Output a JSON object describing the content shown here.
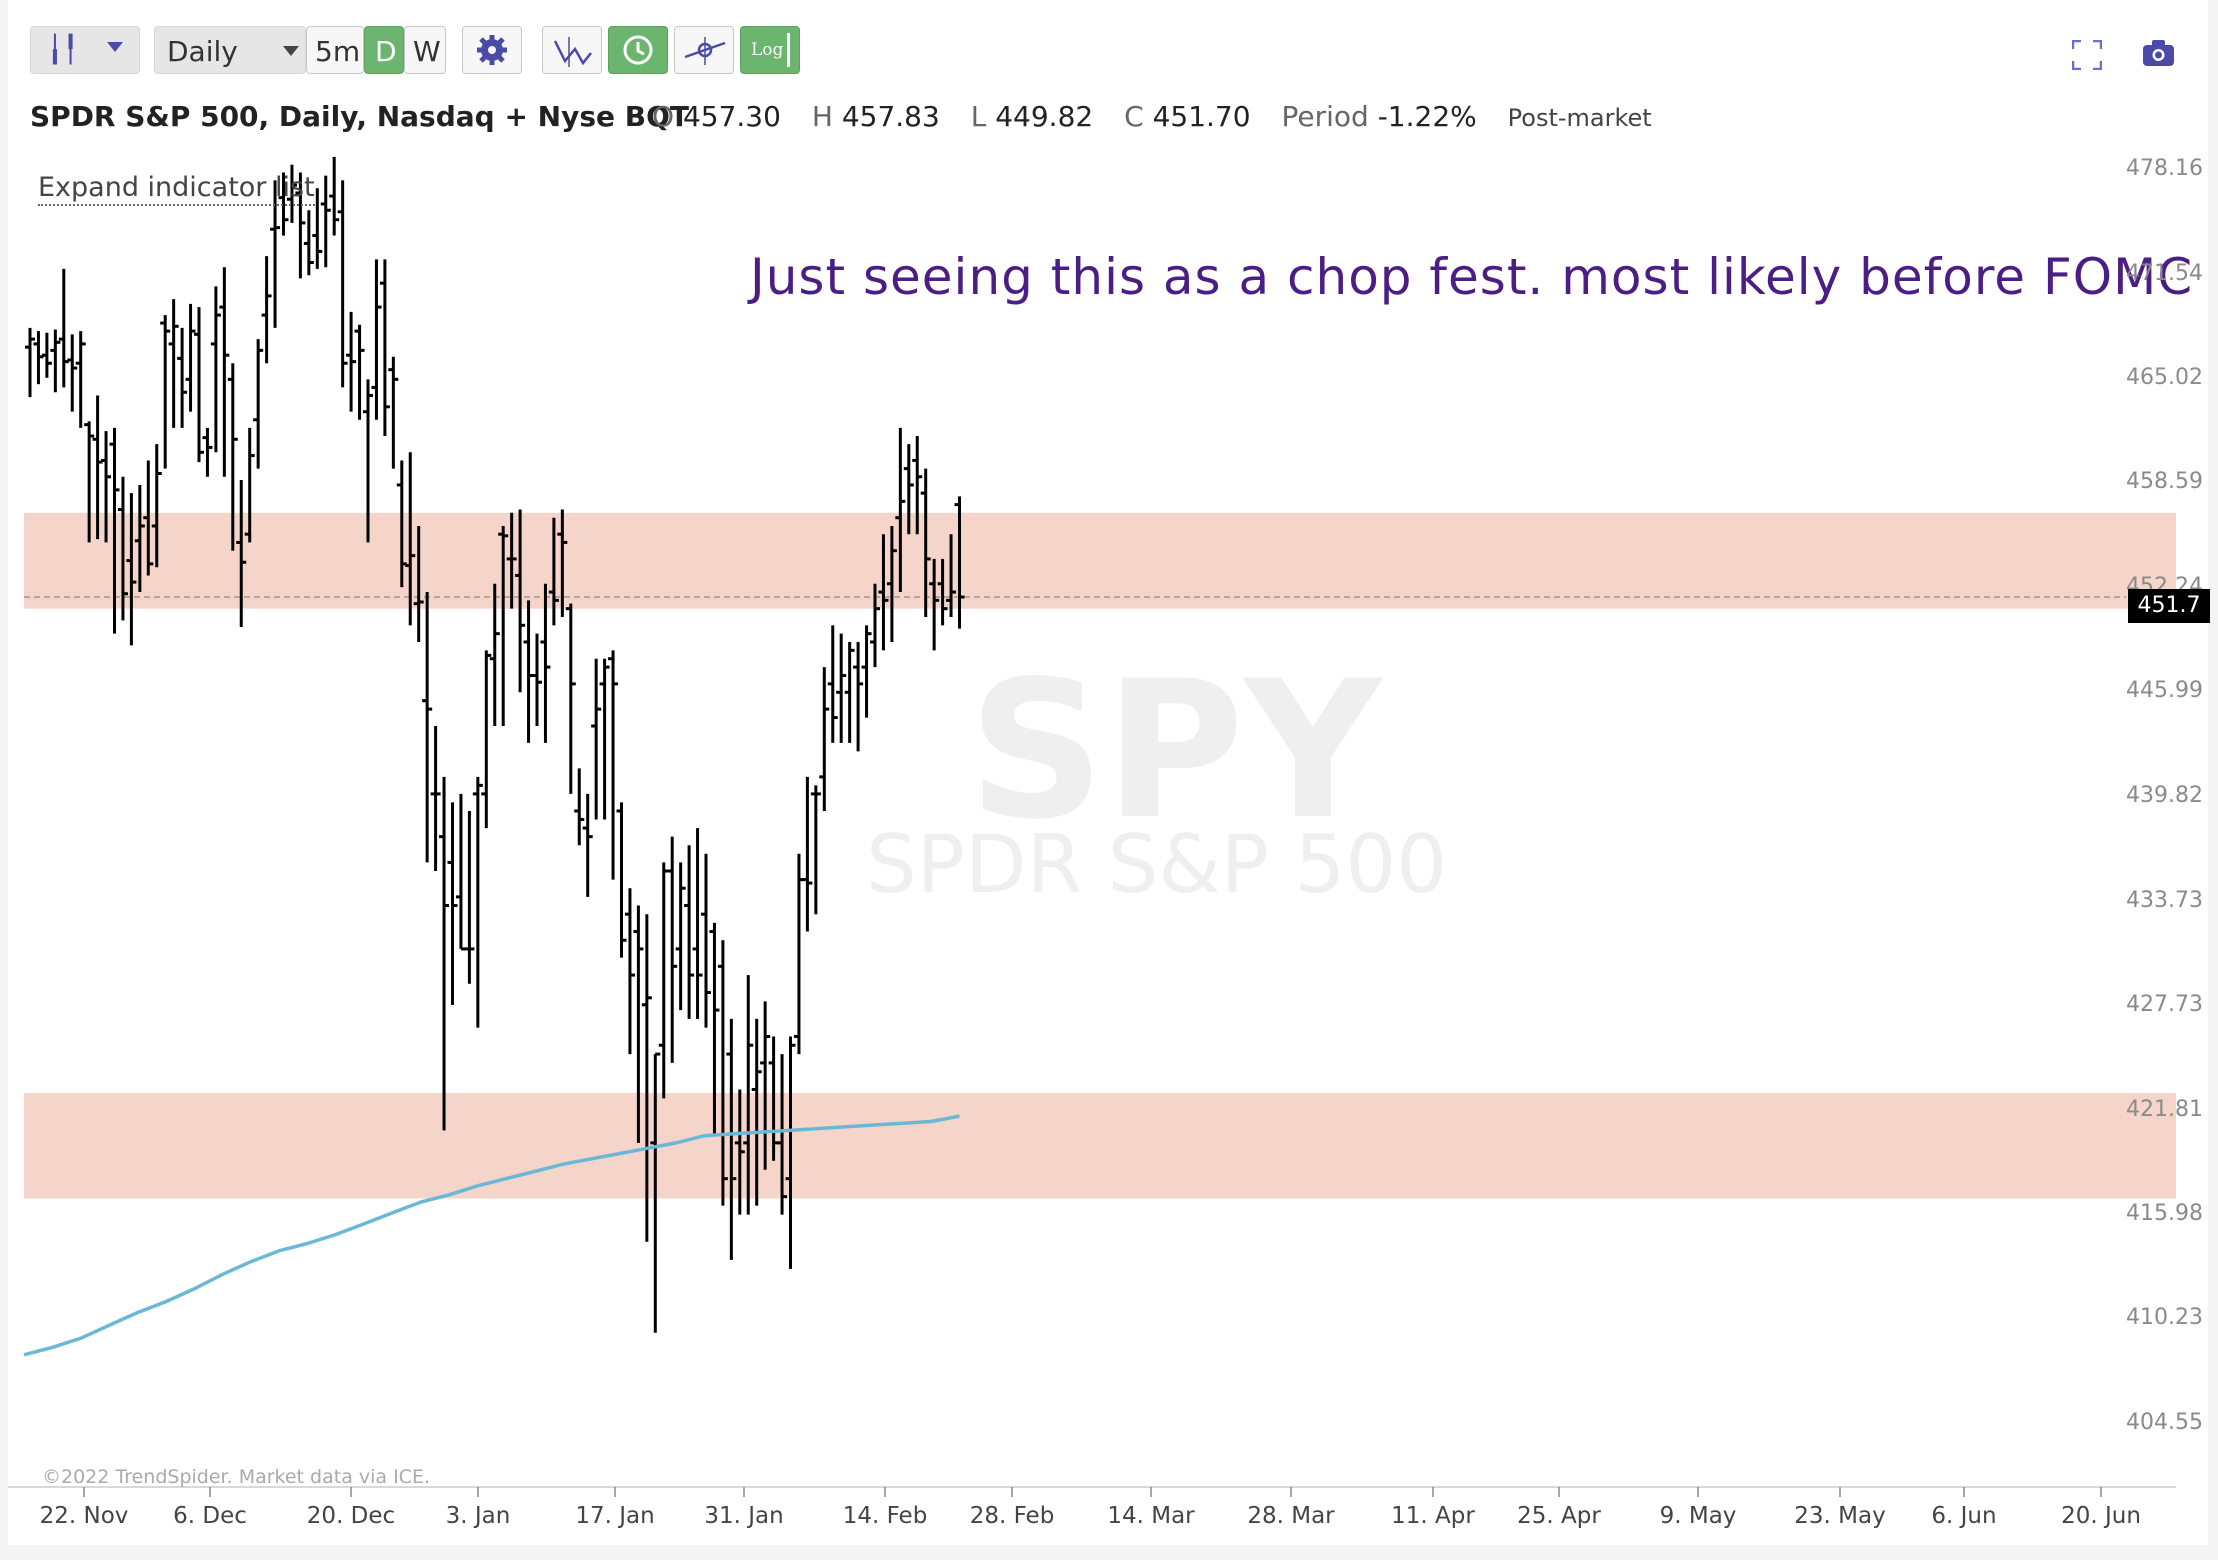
{
  "toolbar": {
    "interval_label": "Daily",
    "btn_5m": "5m",
    "btn_d": "D",
    "btn_w": "W",
    "btn_log": "Log"
  },
  "header": {
    "symbol_name": "SPDR S&P 500, Daily, Nasdaq + Nyse BQT",
    "o_label": "O",
    "o_value": "457.30",
    "h_label": "H",
    "h_value": "457.83",
    "l_label": "L",
    "l_value": "449.82",
    "c_label": "C",
    "c_value": "451.70",
    "period_label": "Period",
    "period_value": "-1.22%",
    "session": "Post-market"
  },
  "expand_indicator_label": "Expand indicator list",
  "annotation": "Just seeing this as a chop fest. most likely before FOMC",
  "watermark": {
    "symbol": "SPY",
    "name": "SPDR S&P 500"
  },
  "copyright": "©2022 TrendSpider. Market data via ICE.",
  "last_price_label": "451.7",
  "colors": {
    "zone": "#f5d5ca",
    "sma": "#6bb8d6",
    "bars": "#000000",
    "annotation": "#4b1e86"
  },
  "chart_data": {
    "type": "bar",
    "style": "ohlc",
    "y_ticks": [
      "478.16",
      "471.54",
      "465.02",
      "458.59",
      "452.24",
      "445.99",
      "439.82",
      "433.73",
      "427.73",
      "421.81",
      "415.98",
      "410.23",
      "404.55"
    ],
    "x_ticks": [
      "22. Nov",
      "6. Dec",
      "20. Dec",
      "3. Jan",
      "17. Jan",
      "31. Jan",
      "14. Feb",
      "28. Feb",
      "14. Mar",
      "28. Mar",
      "11. Apr",
      "25. Apr",
      "9. May",
      "23. May",
      "6. Jun",
      "20. Jun"
    ],
    "ylim": [
      401.4,
      482.1
    ],
    "last_price": 451.7,
    "zones": [],
    "ohlc": [
      {
        "o": 467.0,
        "h": 468.2,
        "l": 463.9,
        "c": 467.5
      },
      {
        "o": 467.2,
        "h": 468.0,
        "l": 464.7,
        "c": 466.4
      },
      {
        "o": 466.5,
        "h": 467.9,
        "l": 465.1,
        "c": 466.0
      },
      {
        "o": 466.8,
        "h": 468.1,
        "l": 464.2,
        "c": 467.3
      },
      {
        "o": 467.5,
        "h": 471.9,
        "l": 464.5,
        "c": 466.1
      },
      {
        "o": 466.2,
        "h": 467.8,
        "l": 463.0,
        "c": 465.7
      },
      {
        "o": 466.0,
        "h": 468.0,
        "l": 462.0,
        "c": 467.2
      },
      {
        "o": 462.2,
        "h": 462.4,
        "l": 455.0,
        "c": 461.5
      },
      {
        "o": 461.3,
        "h": 464.0,
        "l": 455.2,
        "c": 459.9
      },
      {
        "o": 460.0,
        "h": 461.8,
        "l": 455.0,
        "c": 459.0
      },
      {
        "o": 461.0,
        "h": 462.0,
        "l": 449.5,
        "c": 458.2
      },
      {
        "o": 457.0,
        "h": 459.0,
        "l": 450.3,
        "c": 451.9
      },
      {
        "o": 453.9,
        "h": 458.0,
        "l": 448.8,
        "c": 452.6
      },
      {
        "o": 455.1,
        "h": 458.5,
        "l": 452.0,
        "c": 456.0
      },
      {
        "o": 456.5,
        "h": 460.0,
        "l": 453.0,
        "c": 453.7
      },
      {
        "o": 456.0,
        "h": 461.0,
        "l": 453.5,
        "c": 459.2
      },
      {
        "o": 468.5,
        "h": 469.0,
        "l": 459.5,
        "c": 468.0
      },
      {
        "o": 467.2,
        "h": 470.0,
        "l": 462.0,
        "c": 468.3
      },
      {
        "o": 466.3,
        "h": 468.2,
        "l": 462.0,
        "c": 464.2
      },
      {
        "o": 465.0,
        "h": 469.7,
        "l": 463.0,
        "c": 468.0
      },
      {
        "o": 467.8,
        "h": 469.5,
        "l": 459.9,
        "c": 460.5
      },
      {
        "o": 461.4,
        "h": 462.0,
        "l": 459.0,
        "c": 460.8
      },
      {
        "o": 467.2,
        "h": 470.8,
        "l": 460.5,
        "c": 469.0
      },
      {
        "o": 469.5,
        "h": 472.0,
        "l": 459.0,
        "c": 466.5
      },
      {
        "o": 465.0,
        "h": 466.0,
        "l": 454.5,
        "c": 461.3
      },
      {
        "o": 455.0,
        "h": 458.8,
        "l": 449.9,
        "c": 453.8
      },
      {
        "o": 455.5,
        "h": 462.0,
        "l": 455.0,
        "c": 460.3
      },
      {
        "o": 462.5,
        "h": 467.5,
        "l": 459.5,
        "c": 466.8
      },
      {
        "o": 469.0,
        "h": 472.7,
        "l": 466.0,
        "c": 470.2
      },
      {
        "o": 474.4,
        "h": 477.5,
        "l": 468.2,
        "c": 474.5
      },
      {
        "o": 476.4,
        "h": 478.0,
        "l": 474.0,
        "c": 475.0
      },
      {
        "o": 476.3,
        "h": 478.5,
        "l": 474.8,
        "c": 477.2
      },
      {
        "o": 476.7,
        "h": 478.0,
        "l": 471.3,
        "c": 474.8
      },
      {
        "o": 473.5,
        "h": 475.6,
        "l": 471.5,
        "c": 472.3
      },
      {
        "o": 474.0,
        "h": 477.0,
        "l": 471.9,
        "c": 473.0
      },
      {
        "o": 476.0,
        "h": 477.8,
        "l": 472.0,
        "c": 475.6
      },
      {
        "o": 476.5,
        "h": 479.0,
        "l": 474.0,
        "c": 475.0
      },
      {
        "o": 475.5,
        "h": 477.5,
        "l": 464.5,
        "c": 466.0
      },
      {
        "o": 466.5,
        "h": 469.2,
        "l": 463.0,
        "c": 466.1
      },
      {
        "o": 468.0,
        "h": 468.4,
        "l": 462.5,
        "c": 466.8
      },
      {
        "o": 463.0,
        "h": 465.0,
        "l": 455.0,
        "c": 464.0
      },
      {
        "o": 464.5,
        "h": 472.5,
        "l": 462.5,
        "c": 469.5
      },
      {
        "o": 471.0,
        "h": 472.5,
        "l": 461.5,
        "c": 463.3
      },
      {
        "o": 465.6,
        "h": 466.4,
        "l": 459.5,
        "c": 465.0
      },
      {
        "o": 458.5,
        "h": 460.0,
        "l": 452.3,
        "c": 453.7
      },
      {
        "o": 453.6,
        "h": 460.5,
        "l": 450.0,
        "c": 454.2
      },
      {
        "o": 451.3,
        "h": 456.0,
        "l": 449.0,
        "c": 451.4
      },
      {
        "o": 445.5,
        "h": 452.0,
        "l": 436.0,
        "c": 445.0
      },
      {
        "o": 440.0,
        "h": 444.0,
        "l": 435.5,
        "c": 440.0
      },
      {
        "o": 437.5,
        "h": 441.0,
        "l": 420.7,
        "c": 433.5
      },
      {
        "o": 436.0,
        "h": 439.5,
        "l": 427.8,
        "c": 433.5
      },
      {
        "o": 434.0,
        "h": 440.0,
        "l": 431.0,
        "c": 431.0
      },
      {
        "o": 431.0,
        "h": 439.0,
        "l": 429.0,
        "c": 431.0
      },
      {
        "o": 440.0,
        "h": 441.0,
        "l": 426.5,
        "c": 440.5
      },
      {
        "o": 440.0,
        "h": 448.5,
        "l": 438.0,
        "c": 448.2
      },
      {
        "o": 448.0,
        "h": 452.5,
        "l": 444.0,
        "c": 449.5
      },
      {
        "o": 455.5,
        "h": 456.0,
        "l": 444.0,
        "c": 455.4
      },
      {
        "o": 454.0,
        "h": 456.8,
        "l": 451.0,
        "c": 454.0
      },
      {
        "o": 453.0,
        "h": 457.0,
        "l": 446.0,
        "c": 450.0
      },
      {
        "o": 449.0,
        "h": 451.5,
        "l": 443.0,
        "c": 447.0
      },
      {
        "o": 447.0,
        "h": 449.5,
        "l": 444.0,
        "c": 446.6
      },
      {
        "o": 449.0,
        "h": 452.5,
        "l": 443.0,
        "c": 447.5
      },
      {
        "o": 452.0,
        "h": 456.5,
        "l": 450.0,
        "c": 451.5
      },
      {
        "o": 455.5,
        "h": 457.0,
        "l": 450.5,
        "c": 455.0
      },
      {
        "o": 451.0,
        "h": 451.3,
        "l": 440.0,
        "c": 446.5
      },
      {
        "o": 439.0,
        "h": 441.5,
        "l": 437.0,
        "c": 438.5
      },
      {
        "o": 438.0,
        "h": 440.0,
        "l": 434.0,
        "c": 437.5
      },
      {
        "o": 444.0,
        "h": 448.0,
        "l": 438.5,
        "c": 445.0
      },
      {
        "o": 446.5,
        "h": 448.0,
        "l": 438.5,
        "c": 447.5
      },
      {
        "o": 448.0,
        "h": 448.5,
        "l": 435.0,
        "c": 446.5
      },
      {
        "o": 439.0,
        "h": 439.5,
        "l": 430.5,
        "c": 431.5
      },
      {
        "o": 433.0,
        "h": 434.5,
        "l": 425.0,
        "c": 429.5
      },
      {
        "o": 432.0,
        "h": 433.5,
        "l": 420.0,
        "c": 431.0
      },
      {
        "o": 427.8,
        "h": 433.0,
        "l": 414.5,
        "c": 428.2
      },
      {
        "o": 420.0,
        "h": 425.0,
        "l": 409.5,
        "c": 425.0
      },
      {
        "o": 425.5,
        "h": 436.0,
        "l": 422.5,
        "c": 435.5
      },
      {
        "o": 435.5,
        "h": 437.5,
        "l": 424.5,
        "c": 430.0
      },
      {
        "o": 431.0,
        "h": 436.0,
        "l": 427.5,
        "c": 434.5
      },
      {
        "o": 433.5,
        "h": 437.0,
        "l": 427.0,
        "c": 429.5
      },
      {
        "o": 431.0,
        "h": 438.0,
        "l": 427.0,
        "c": 429.5
      },
      {
        "o": 433.0,
        "h": 436.5,
        "l": 426.5,
        "c": 428.5
      },
      {
        "o": 432.0,
        "h": 432.5,
        "l": 420.5,
        "c": 427.5
      },
      {
        "o": 430.0,
        "h": 431.5,
        "l": 416.5,
        "c": 418.0
      },
      {
        "o": 425.0,
        "h": 427.0,
        "l": 413.5,
        "c": 418.0
      },
      {
        "o": 420.0,
        "h": 423.0,
        "l": 416.0,
        "c": 419.5
      },
      {
        "o": 420.0,
        "h": 429.5,
        "l": 416.0,
        "c": 425.5
      },
      {
        "o": 423.0,
        "h": 427.0,
        "l": 416.5,
        "c": 424.0
      },
      {
        "o": 424.5,
        "h": 428.0,
        "l": 418.5,
        "c": 426.0
      },
      {
        "o": 424.5,
        "h": 426.0,
        "l": 419.0,
        "c": 420.0
      },
      {
        "o": 420.0,
        "h": 425.0,
        "l": 416.0,
        "c": 417.0
      },
      {
        "o": 418.0,
        "h": 426.0,
        "l": 413.0,
        "c": 425.5
      },
      {
        "o": 426.0,
        "h": 436.5,
        "l": 425.0,
        "c": 435.0
      },
      {
        "o": 435.0,
        "h": 441.0,
        "l": 432.0,
        "c": 434.8
      },
      {
        "o": 440.0,
        "h": 440.5,
        "l": 433.0,
        "c": 440.0
      },
      {
        "o": 441.0,
        "h": 447.5,
        "l": 439.0,
        "c": 445.0
      },
      {
        "o": 446.5,
        "h": 450.0,
        "l": 443.0,
        "c": 444.5
      },
      {
        "o": 446.0,
        "h": 449.5,
        "l": 443.0,
        "c": 447.0
      },
      {
        "o": 446.0,
        "h": 449.0,
        "l": 443.0,
        "c": 448.5
      },
      {
        "o": 447.5,
        "h": 449.0,
        "l": 442.5,
        "c": 446.5
      },
      {
        "o": 447.5,
        "h": 450.0,
        "l": 444.5,
        "c": 449.5
      },
      {
        "o": 449.0,
        "h": 452.5,
        "l": 447.5,
        "c": 451.0
      },
      {
        "o": 452.0,
        "h": 455.5,
        "l": 448.5,
        "c": 451.5
      },
      {
        "o": 452.5,
        "h": 456.0,
        "l": 449.0,
        "c": 454.5
      },
      {
        "o": 456.5,
        "h": 462.0,
        "l": 452.0,
        "c": 457.5
      },
      {
        "o": 459.5,
        "h": 461.0,
        "l": 455.5,
        "c": 458.5
      },
      {
        "o": 460.0,
        "h": 461.5,
        "l": 455.5,
        "c": 459.0
      },
      {
        "o": 458.0,
        "h": 459.5,
        "l": 450.5,
        "c": 454.0
      },
      {
        "o": 452.5,
        "h": 454.0,
        "l": 448.5,
        "c": 451.5
      },
      {
        "o": 452.5,
        "h": 454.0,
        "l": 450.0,
        "c": 451.0
      },
      {
        "o": 451.5,
        "h": 455.5,
        "l": 450.5,
        "c": 452.0
      },
      {
        "o": 457.3,
        "h": 457.8,
        "l": 449.8,
        "c": 451.7
      }
    ],
    "sma": [
      408.3,
      408.7,
      409.2,
      409.9,
      410.6,
      411.2,
      411.9,
      412.7,
      413.4,
      414.0,
      414.4,
      414.9,
      415.5,
      416.1,
      416.7,
      417.1,
      417.6,
      418.0,
      418.4,
      418.8,
      419.1,
      419.4,
      419.7,
      420.0,
      420.4,
      420.5,
      420.6,
      420.7,
      420.8,
      420.9,
      421.0,
      421.1,
      421.2,
      421.5
    ]
  }
}
